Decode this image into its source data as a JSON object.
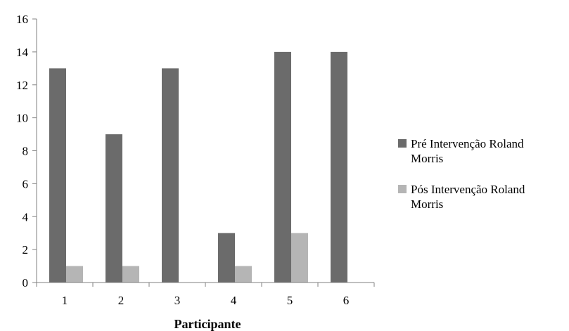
{
  "chart_data": {
    "type": "bar",
    "title": "",
    "xlabel": "Participante",
    "ylabel": "",
    "categories": [
      "1",
      "2",
      "3",
      "4",
      "5",
      "6"
    ],
    "series": [
      {
        "name": "Pré Intervenção Roland Morris",
        "values": [
          13,
          9,
          13,
          3,
          14,
          14
        ],
        "color": "#6b6b6b"
      },
      {
        "name": "Pós Intervenção Roland Morris",
        "values": [
          1,
          1,
          0,
          1,
          3,
          0
        ],
        "color": "#b5b5b5"
      }
    ],
    "ylim": [
      0,
      16
    ],
    "yticks": [
      0,
      2,
      4,
      6,
      8,
      10,
      12,
      14,
      16
    ],
    "grid": false,
    "legend": "right"
  }
}
